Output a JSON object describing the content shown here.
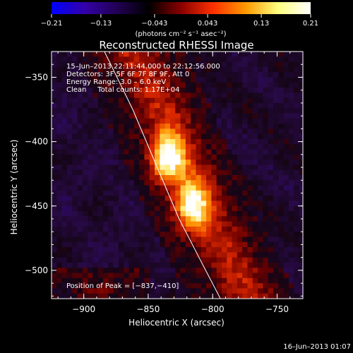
{
  "chart_data": {
    "type": "heatmap",
    "title": "Reconstructed RHESSI Image",
    "xlabel": "Heliocentric X (arcsec)",
    "ylabel": "Heliocentric Y (arcsec)",
    "xlim": [
      -925,
      -730
    ],
    "ylim": [
      -522,
      -330
    ],
    "x_ticks": [
      -900,
      -850,
      -800,
      -750
    ],
    "y_ticks": [
      -350,
      -400,
      -450,
      -500
    ],
    "x_tick_labels": [
      "−900",
      "−850",
      "−800",
      "−750"
    ],
    "y_tick_labels": [
      "−350",
      "−400",
      "−450",
      "−500"
    ],
    "colorbar": {
      "range": [
        -0.21,
        0.21
      ],
      "ticks": [
        -0.21,
        -0.13,
        -0.043,
        0.043,
        0.13,
        0.21
      ],
      "tick_labels": [
        "−0.21",
        "−0.13",
        "−0.043",
        "0.043",
        "0.13",
        "0.21"
      ],
      "unit_label": "(photons cm⁻² s⁻¹ asec⁻²)",
      "colors": [
        "#0000ff",
        "#3300aa",
        "#220055",
        "#000000",
        "#8a0000",
        "#ff3000",
        "#ff9a00",
        "#ffff80",
        "#ffffff"
      ]
    },
    "annotations": [
      "15–Jun–2013 22:11:44.000 to 22:12:56.000",
      "Detectors: 3F 5F 6F 7F 8F 9F, Att 0",
      "Energy Range: 3.0 – 6.0 keV",
      "Clean     Total counts: 1.17E+04"
    ],
    "peak_label": "Position of Peak = [−837,−410]",
    "sources": [
      {
        "x": -837,
        "y": -410,
        "value": 0.21
      },
      {
        "x": -818,
        "y": -448,
        "value": 0.19
      }
    ],
    "limb_curve": [
      [
        -884,
        -330
      ],
      [
        -862,
        -375
      ],
      [
        -843,
        -420
      ],
      [
        -826,
        -460
      ],
      [
        -808,
        -495
      ],
      [
        -794,
        -522
      ]
    ],
    "timestamp": "16–Jun–2013 01:07"
  }
}
